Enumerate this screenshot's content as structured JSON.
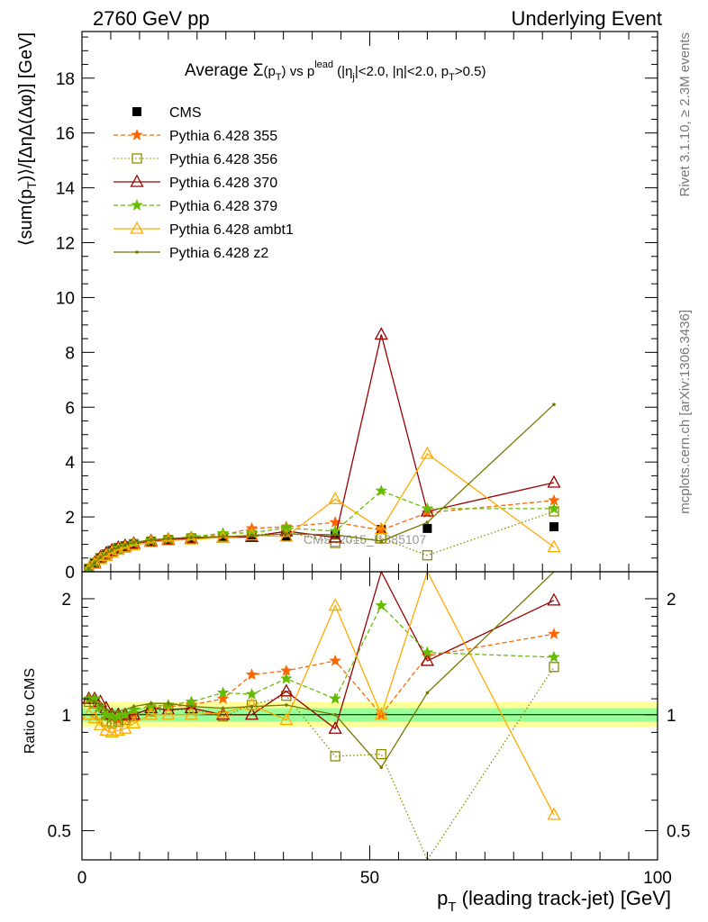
{
  "header": {
    "left": "2760 GeV pp",
    "right": "Underlying Event"
  },
  "side_labels": {
    "rivet": "Rivet 3.1.10, ≥ 2.3M events",
    "mcplots": "mcplots.cern.ch [arXiv:1306.3436]"
  },
  "watermark": "CMS_2015_I1385107",
  "chart_data": [
    {
      "type": "line",
      "title": "Average Σ(p_T) vs p_T^lead (|η_j|<2.0, |η|<2.0, p_T>0.5)",
      "title_parts": {
        "main": "Average ",
        "sigma": "Σ",
        "p1": "(p",
        "t": "T",
        "p2": ")",
        "vs": " vs p",
        "lead": "lead",
        "cut1": " (|η",
        "j": "j",
        "cut2": "|<2.0, |η|<2.0, p",
        "cut3": ">0.5)"
      },
      "ylabel": "⟨sum(p_T)⟩/[ΔηΔ(Δφ)] [GeV]",
      "ylabel_parts": {
        "a": "⟨sum(p",
        "t": "T",
        "b": ")⟩/[ΔηΔ(Δφ)] [GeV]"
      },
      "xlim": [
        0,
        100
      ],
      "ylim": [
        0,
        19.7
      ],
      "yticks": [
        0,
        2,
        4,
        6,
        8,
        10,
        12,
        14,
        16,
        18
      ],
      "legend_position": "top-left",
      "series": [
        {
          "name": "CMS",
          "color": "#000000",
          "marker": "square-filled",
          "dash": "none",
          "x": [
            1.2,
            2.2,
            3.2,
            4.2,
            5.2,
            6.3,
            7.5,
            9.0,
            12.0,
            15.0,
            19.0,
            24.5,
            29.5,
            35.5,
            44.0,
            52.0,
            60.0,
            82.0
          ],
          "y": [
            0.1,
            0.3,
            0.5,
            0.65,
            0.78,
            0.88,
            0.95,
            1.02,
            1.08,
            1.13,
            1.18,
            1.23,
            1.26,
            1.3,
            1.34,
            1.54,
            1.58,
            1.64
          ]
        },
        {
          "name": "Pythia 6.428 355",
          "color": "#ff6600",
          "marker": "star",
          "dash": "5,3",
          "x": [
            1.2,
            2.2,
            3.2,
            4.2,
            5.2,
            6.3,
            7.5,
            9.0,
            12.0,
            15.0,
            19.0,
            24.5,
            29.5,
            35.5,
            44.0,
            52.0,
            60.0,
            82.0
          ],
          "y": [
            0.11,
            0.33,
            0.52,
            0.64,
            0.76,
            0.86,
            0.93,
            1.03,
            1.12,
            1.18,
            1.25,
            1.34,
            1.58,
            1.64,
            1.8,
            1.52,
            2.15,
            2.6
          ]
        },
        {
          "name": "Pythia 6.428 356",
          "color": "#8b8b00",
          "marker": "square-open",
          "dash": "1.5,2.5",
          "x": [
            1.2,
            2.2,
            3.2,
            4.2,
            5.2,
            6.3,
            7.5,
            9.0,
            12.0,
            15.0,
            19.0,
            24.5,
            29.5,
            35.5,
            44.0,
            52.0,
            60.0,
            82.0
          ],
          "y": [
            0.11,
            0.32,
            0.5,
            0.62,
            0.74,
            0.84,
            0.92,
            1.01,
            1.1,
            1.16,
            1.22,
            1.28,
            1.33,
            1.45,
            1.05,
            1.22,
            0.6,
            2.2
          ]
        },
        {
          "name": "Pythia 6.428 370",
          "color": "#990000",
          "marker": "triangle-open",
          "dash": "none",
          "x": [
            1.2,
            2.2,
            3.2,
            4.2,
            5.2,
            6.3,
            7.5,
            9.0,
            12.0,
            15.0,
            19.0,
            24.5,
            29.5,
            35.5,
            44.0,
            52.0,
            60.0,
            82.0
          ],
          "y": [
            0.11,
            0.33,
            0.53,
            0.67,
            0.78,
            0.88,
            0.95,
            1.03,
            1.12,
            1.17,
            1.22,
            1.25,
            1.27,
            1.48,
            1.25,
            8.65,
            2.2,
            3.25
          ]
        },
        {
          "name": "Pythia 6.428 379",
          "color": "#66bb00",
          "marker": "star",
          "dash": "5,3",
          "x": [
            1.2,
            2.2,
            3.2,
            4.2,
            5.2,
            6.3,
            7.5,
            9.0,
            12.0,
            15.0,
            19.0,
            24.5,
            29.5,
            35.5,
            44.0,
            52.0,
            60.0,
            82.0
          ],
          "y": [
            0.11,
            0.33,
            0.52,
            0.65,
            0.77,
            0.87,
            0.95,
            1.05,
            1.14,
            1.2,
            1.28,
            1.4,
            1.42,
            1.6,
            1.48,
            2.95,
            2.3,
            2.3
          ]
        },
        {
          "name": "Pythia 6.428 ambt1",
          "color": "#ffaa00",
          "marker": "triangle-open",
          "dash": "none",
          "x": [
            1.2,
            2.2,
            3.2,
            4.2,
            5.2,
            6.3,
            7.5,
            9.0,
            12.0,
            15.0,
            19.0,
            24.5,
            29.5,
            35.5,
            44.0,
            52.0,
            60.0,
            82.0
          ],
          "y": [
            0.1,
            0.29,
            0.46,
            0.58,
            0.7,
            0.8,
            0.88,
            0.97,
            1.08,
            1.14,
            1.18,
            1.25,
            1.33,
            1.28,
            2.65,
            1.55,
            4.3,
            0.9
          ]
        },
        {
          "name": "Pythia 6.428 z2",
          "color": "#777700",
          "marker": "dot",
          "dash": "none",
          "x": [
            1.2,
            2.2,
            3.2,
            4.2,
            5.2,
            6.3,
            7.5,
            9.0,
            12.0,
            15.0,
            19.0,
            24.5,
            29.5,
            35.5,
            44.0,
            52.0,
            60.0,
            82.0
          ],
          "y": [
            0.11,
            0.32,
            0.52,
            0.66,
            0.79,
            0.9,
            0.98,
            1.07,
            1.16,
            1.21,
            1.25,
            1.28,
            1.32,
            1.38,
            1.35,
            1.12,
            1.8,
            6.1
          ]
        }
      ]
    },
    {
      "type": "line",
      "ylabel": "Ratio to CMS",
      "xlabel": "p_T (leading track-jet) [GeV]",
      "xlabel_parts": {
        "p": "p",
        "t": "T",
        "rest": " (leading track-jet) [GeV]"
      },
      "xlim": [
        0,
        100
      ],
      "ylim": [
        0.42,
        2.35
      ],
      "yscale": "log",
      "xticks": [
        0,
        50,
        100
      ],
      "yticks": [
        0.5,
        1,
        2
      ],
      "band": {
        "x": [
          0,
          100
        ],
        "inner": [
          0.96,
          1.04
        ],
        "outer": [
          0.93,
          1.08
        ],
        "inner_color": "#99ff99",
        "outer_color": "#ffff99"
      },
      "series": [
        {
          "name": "Pythia 6.428 355",
          "color": "#ff6600",
          "marker": "star",
          "dash": "5,3",
          "x": [
            1.2,
            2.2,
            3.2,
            4.2,
            5.2,
            6.3,
            7.5,
            9.0,
            12.0,
            15.0,
            19.0,
            24.5,
            29.5,
            35.5,
            44.0,
            52.0,
            60.0,
            82.0
          ],
          "y": [
            1.1,
            1.1,
            1.05,
            1.0,
            0.98,
            0.97,
            0.98,
            1.0,
            1.04,
            1.05,
            1.06,
            1.1,
            1.27,
            1.3,
            1.38,
            1.0,
            1.42,
            1.62
          ]
        },
        {
          "name": "Pythia 6.428 356",
          "color": "#8b8b00",
          "marker": "square-open",
          "dash": "1.5,2.5",
          "x": [
            1.2,
            2.2,
            3.2,
            4.2,
            5.2,
            6.3,
            7.5,
            9.0,
            12.0,
            15.0,
            19.0,
            24.5,
            29.5,
            35.5,
            44.0,
            52.0,
            60.0,
            82.0
          ],
          "y": [
            1.08,
            1.07,
            1.0,
            0.96,
            0.95,
            0.96,
            0.97,
            0.99,
            1.02,
            1.03,
            1.03,
            0.99,
            1.06,
            1.12,
            0.78,
            0.79,
            0.38,
            1.33
          ]
        },
        {
          "name": "Pythia 6.428 370",
          "color": "#990000",
          "marker": "triangle-open",
          "dash": "none",
          "x": [
            1.2,
            2.2,
            3.2,
            4.2,
            5.2,
            6.3,
            7.5,
            9.0,
            12.0,
            15.0,
            19.0,
            24.5,
            29.5,
            35.5,
            44.0,
            52.0,
            60.0,
            82.0
          ],
          "y": [
            1.1,
            1.1,
            1.08,
            1.04,
            1.0,
            1.0,
            1.0,
            1.0,
            1.04,
            1.03,
            1.04,
            1.0,
            1.0,
            1.15,
            0.92,
            5.6,
            1.38,
            1.98
          ]
        },
        {
          "name": "Pythia 6.428 379",
          "color": "#66bb00",
          "marker": "star",
          "dash": "5,3",
          "x": [
            1.2,
            2.2,
            3.2,
            4.2,
            5.2,
            6.3,
            7.5,
            9.0,
            12.0,
            15.0,
            19.0,
            24.5,
            29.5,
            35.5,
            44.0,
            52.0,
            60.0,
            82.0
          ],
          "y": [
            1.1,
            1.1,
            1.05,
            1.0,
            0.99,
            0.99,
            1.0,
            1.03,
            1.05,
            1.06,
            1.08,
            1.14,
            1.13,
            1.24,
            1.1,
            1.92,
            1.45,
            1.41
          ]
        },
        {
          "name": "Pythia 6.428 ambt1",
          "color": "#ffaa00",
          "marker": "triangle-open",
          "dash": "none",
          "x": [
            1.2,
            2.2,
            3.2,
            4.2,
            5.2,
            6.3,
            7.5,
            9.0,
            12.0,
            15.0,
            19.0,
            24.5,
            29.5,
            35.5,
            44.0,
            52.0,
            60.0,
            82.0
          ],
          "y": [
            1.0,
            0.98,
            0.94,
            0.91,
            0.9,
            0.91,
            0.92,
            0.95,
            1.0,
            1.0,
            1.0,
            1.01,
            1.06,
            0.97,
            1.92,
            1.0,
            2.7,
            0.55
          ]
        },
        {
          "name": "Pythia 6.428 z2",
          "color": "#777700",
          "marker": "dot",
          "dash": "none",
          "x": [
            1.2,
            2.2,
            3.2,
            4.2,
            5.2,
            6.3,
            7.5,
            9.0,
            12.0,
            15.0,
            19.0,
            24.5,
            29.5,
            35.5,
            44.0,
            52.0,
            60.0,
            82.0
          ],
          "y": [
            1.1,
            1.08,
            1.06,
            1.03,
            1.02,
            1.02,
            1.03,
            1.05,
            1.07,
            1.07,
            1.05,
            1.04,
            1.05,
            1.06,
            1.0,
            0.73,
            1.14,
            3.7
          ]
        }
      ]
    }
  ]
}
